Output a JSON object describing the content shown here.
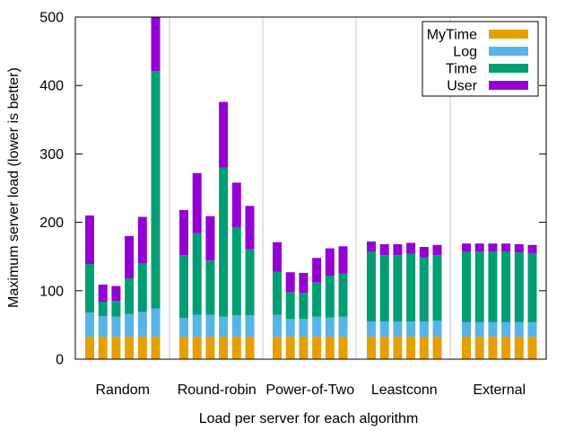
{
  "chart_data": {
    "type": "bar",
    "stacked": true,
    "xlabel": "Load per server for each algorithm",
    "ylabel": "Maximum server load (lower is better)",
    "ylim": [
      0,
      500
    ],
    "yticks": [
      "0",
      "100",
      "200",
      "300",
      "400",
      "500"
    ],
    "grid": false,
    "legend_position": "top-right",
    "groups": [
      "Random",
      "Round-robin",
      "Power-of-Two",
      "Leastconn",
      "External"
    ],
    "series": [
      {
        "name": "MyTime",
        "color": "#e69f00"
      },
      {
        "name": "Log",
        "color": "#56b4e9"
      },
      {
        "name": "Time",
        "color": "#009e73"
      },
      {
        "name": "User",
        "color": "#9400d3"
      }
    ],
    "bars": [
      [
        [
          33,
          35,
          71,
          71
        ],
        [
          33,
          30,
          21,
          25
        ],
        [
          33,
          29,
          23,
          22
        ],
        [
          33,
          33,
          52,
          62
        ],
        [
          33,
          36,
          71,
          68
        ],
        [
          33,
          41,
          347,
          79
        ]
      ],
      [
        [
          33,
          27,
          92,
          66
        ],
        [
          33,
          32,
          119,
          88
        ],
        [
          33,
          32,
          79,
          65
        ],
        [
          33,
          29,
          218,
          96
        ],
        [
          33,
          31,
          129,
          65
        ],
        [
          33,
          31,
          97,
          63
        ]
      ],
      [
        [
          33,
          32,
          63,
          43
        ],
        [
          33,
          26,
          39,
          29
        ],
        [
          33,
          26,
          38,
          29
        ],
        [
          33,
          29,
          50,
          36
        ],
        [
          33,
          28,
          61,
          40
        ],
        [
          33,
          29,
          63,
          40
        ]
      ],
      [
        [
          33,
          22,
          102,
          15
        ],
        [
          33,
          22,
          97,
          16
        ],
        [
          33,
          22,
          97,
          16
        ],
        [
          33,
          22,
          99,
          16
        ],
        [
          33,
          22,
          94,
          15
        ],
        [
          33,
          23,
          96,
          15
        ]
      ],
      [
        [
          33,
          21,
          103,
          12
        ],
        [
          33,
          21,
          103,
          12
        ],
        [
          33,
          21,
          103,
          12
        ],
        [
          33,
          21,
          103,
          12
        ],
        [
          33,
          21,
          102,
          12
        ],
        [
          33,
          21,
          101,
          12
        ]
      ]
    ]
  }
}
